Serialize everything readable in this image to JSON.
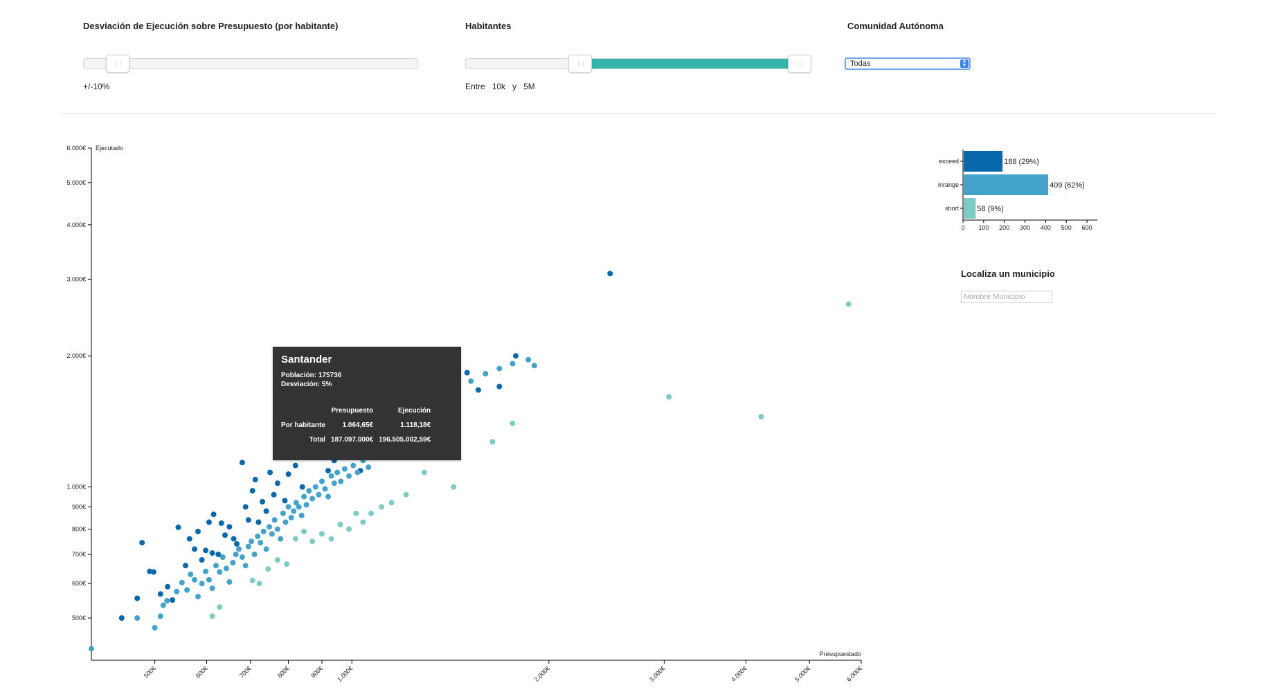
{
  "controls": {
    "deviation": {
      "title": "Desviación de Ejecución sobre Presupuesto (por habitante)",
      "value_label": "+/-10%",
      "value": 10,
      "min": 0,
      "max": 100
    },
    "population": {
      "title": "Habitantes",
      "prefix": "Entre",
      "low_label": "10k",
      "conj": "y",
      "high_label": "5M",
      "range_fraction": [
        0.32,
        1.0
      ]
    },
    "region": {
      "title": "Comunidad Autónoma",
      "selected": "Todas"
    }
  },
  "locate": {
    "title": "Localiza un municipio",
    "placeholder": "Nombre Municipio"
  },
  "tooltip": {
    "name": "Santander",
    "population_line": "Población: 175736",
    "deviation_line": "Desviación: 5%",
    "col_budget": "Presupuesto",
    "col_exec": "Ejecución",
    "row1_label": "Por habitante",
    "row1_budget": "1.064,65€",
    "row1_exec": "1.118,18€",
    "row2_label": "Total",
    "row2_budget": "187.097.000€",
    "row2_exec": "196.505.002,59€"
  },
  "colors": {
    "exceed": "#0868ac",
    "inrange": "#43a2ca",
    "short": "#7bccc4",
    "highlight": "#0b2a45",
    "slider": "#35b5a9"
  },
  "chart_data": [
    {
      "type": "scatter",
      "title": "",
      "xlabel": "Presupuestado",
      "ylabel": "Ejecutado",
      "x_scale": "log",
      "y_scale": "log",
      "xlim": [
        400,
        6000
      ],
      "ylim": [
        400,
        6000
      ],
      "x_ticks": [
        "500€",
        "600€",
        "700€",
        "800€",
        "900€",
        "1.000€",
        "2.000€",
        "3.000€",
        "4.000€",
        "5.000€",
        "6.000€"
      ],
      "x_tick_values": [
        500,
        600,
        700,
        800,
        900,
        1000,
        2000,
        3000,
        4000,
        5000,
        6000
      ],
      "y_ticks": [
        "500€",
        "600€",
        "700€",
        "800€",
        "900€",
        "1.000€",
        "2.000€",
        "3.000€",
        "4.000€",
        "5.000€",
        "6.000€"
      ],
      "y_tick_values": [
        500,
        600,
        700,
        800,
        900,
        1000,
        2000,
        3000,
        4000,
        5000,
        6000
      ],
      "series": [
        {
          "name": "exceed",
          "color": "#0868ac",
          "points": [
            [
              445,
              500
            ],
            [
              470,
              555
            ],
            [
              478,
              745
            ],
            [
              491,
              640
            ],
            [
              498,
              638
            ],
            [
              510,
              568
            ],
            [
              523,
              590
            ],
            [
              532,
              550
            ],
            [
              543,
              808
            ],
            [
              557,
              660
            ],
            [
              565,
              760
            ],
            [
              575,
              720
            ],
            [
              582,
              790
            ],
            [
              590,
              680
            ],
            [
              598,
              715
            ],
            [
              605,
              830
            ],
            [
              612,
              705
            ],
            [
              615,
              865
            ],
            [
              625,
              700
            ],
            [
              632,
              826
            ],
            [
              640,
              775
            ],
            [
              650,
              810
            ],
            [
              660,
              760
            ],
            [
              667,
              740
            ],
            [
              680,
              1138
            ],
            [
              688,
              900
            ],
            [
              695,
              840
            ],
            [
              705,
              980
            ],
            [
              712,
              1040
            ],
            [
              720,
              830
            ],
            [
              730,
              925
            ],
            [
              740,
              880
            ],
            [
              750,
              1080
            ],
            [
              760,
              960
            ],
            [
              770,
              1020
            ],
            [
              780,
              1190
            ],
            [
              790,
              930
            ],
            [
              800,
              1070
            ],
            [
              810,
              1250
            ],
            [
              820,
              1120
            ],
            [
              840,
              1000
            ],
            [
              860,
              1430
            ],
            [
              880,
              1310
            ],
            [
              900,
              1200
            ],
            [
              920,
              1090
            ],
            [
              940,
              1150
            ],
            [
              970,
              1260
            ],
            [
              1000,
              1180
            ],
            [
              1030,
              1090
            ],
            [
              1060,
              1400
            ],
            [
              1100,
              1500
            ],
            [
              1140,
              1700
            ],
            [
              1180,
              1600
            ],
            [
              1260,
              1900
            ],
            [
              1350,
              1480
            ],
            [
              1450,
              1540
            ],
            [
              1500,
              1830
            ],
            [
              1560,
              1670
            ],
            [
              1680,
              1700
            ],
            [
              1780,
              2000
            ],
            [
              2480,
              3090
            ]
          ]
        },
        {
          "name": "inrange",
          "color": "#43a2ca",
          "points": [
            [
              400,
              425
            ],
            [
              470,
              500
            ],
            [
              500,
              475
            ],
            [
              510,
              505
            ],
            [
              515,
              535
            ],
            [
              522,
              548
            ],
            [
              540,
              575
            ],
            [
              550,
              603
            ],
            [
              560,
              580
            ],
            [
              567,
              630
            ],
            [
              575,
              612
            ],
            [
              582,
              560
            ],
            [
              590,
              600
            ],
            [
              598,
              640
            ],
            [
              605,
              612
            ],
            [
              612,
              585
            ],
            [
              620,
              660
            ],
            [
              628,
              638
            ],
            [
              635,
              690
            ],
            [
              643,
              650
            ],
            [
              650,
              605
            ],
            [
              658,
              670
            ],
            [
              665,
              700
            ],
            [
              672,
              720
            ],
            [
              680,
              690
            ],
            [
              688,
              660
            ],
            [
              695,
              730
            ],
            [
              702,
              750
            ],
            [
              710,
              700
            ],
            [
              718,
              770
            ],
            [
              725,
              745
            ],
            [
              733,
              790
            ],
            [
              740,
              720
            ],
            [
              748,
              810
            ],
            [
              755,
              780
            ],
            [
              762,
              840
            ],
            [
              770,
              800
            ],
            [
              778,
              760
            ],
            [
              785,
              870
            ],
            [
              792,
              830
            ],
            [
              800,
              900
            ],
            [
              808,
              850
            ],
            [
              815,
              880
            ],
            [
              822,
              920
            ],
            [
              830,
              900
            ],
            [
              838,
              860
            ],
            [
              845,
              950
            ],
            [
              852,
              910
            ],
            [
              860,
              980
            ],
            [
              870,
              940
            ],
            [
              880,
              1000
            ],
            [
              890,
              960
            ],
            [
              900,
              1030
            ],
            [
              910,
              990
            ],
            [
              920,
              950
            ],
            [
              930,
              1060
            ],
            [
              940,
              1020
            ],
            [
              950,
              1080
            ],
            [
              962,
              1030
            ],
            [
              975,
              1100
            ],
            [
              990,
              1060
            ],
            [
              1005,
              1120
            ],
            [
              1020,
              1080
            ],
            [
              1040,
              1150
            ],
            [
              1060,
              1110
            ],
            [
              1080,
              1180
            ],
            [
              1100,
              1230
            ],
            [
              1130,
              1270
            ],
            [
              1160,
              1330
            ],
            [
              1190,
              1380
            ],
            [
              1230,
              1420
            ],
            [
              1270,
              1500
            ],
            [
              1320,
              1560
            ],
            [
              1380,
              1620
            ],
            [
              1450,
              1680
            ],
            [
              1520,
              1750
            ],
            [
              1600,
              1820
            ],
            [
              1680,
              1870
            ],
            [
              1760,
              1920
            ],
            [
              1860,
              1960
            ],
            [
              1900,
              1900
            ]
          ]
        },
        {
          "name": "short",
          "color": "#7bccc4",
          "points": [
            [
              612,
              505
            ],
            [
              628,
              530
            ],
            [
              705,
              610
            ],
            [
              722,
              600
            ],
            [
              745,
              648
            ],
            [
              770,
              680
            ],
            [
              795,
              665
            ],
            [
              820,
              760
            ],
            [
              845,
              790
            ],
            [
              870,
              750
            ],
            [
              900,
              780
            ],
            [
              930,
              760
            ],
            [
              960,
              820
            ],
            [
              990,
              800
            ],
            [
              1015,
              870
            ],
            [
              1040,
              830
            ],
            [
              1070,
              870
            ],
            [
              1110,
              900
            ],
            [
              1150,
              920
            ],
            [
              1210,
              960
            ],
            [
              1290,
              1080
            ],
            [
              1430,
              1000
            ],
            [
              1640,
              1270
            ],
            [
              1760,
              1400
            ],
            [
              3050,
              1610
            ],
            [
              4220,
              1450
            ],
            [
              5740,
              2630
            ]
          ]
        }
      ]
    },
    {
      "type": "bar",
      "orientation": "horizontal",
      "title": "",
      "categories": [
        "exceed",
        "inrange",
        "short"
      ],
      "values": [
        188,
        409,
        58
      ],
      "data_labels": [
        "188 (29%)",
        "409 (62%)",
        "58 (9%)"
      ],
      "colors": [
        "#0868ac",
        "#43a2ca",
        "#7bccc4"
      ],
      "xlim": [
        0,
        650
      ],
      "x_ticks": [
        "0",
        "100",
        "200",
        "300",
        "400",
        "500",
        "600"
      ],
      "x_tick_values": [
        0,
        100,
        200,
        300,
        400,
        500,
        600
      ]
    }
  ]
}
